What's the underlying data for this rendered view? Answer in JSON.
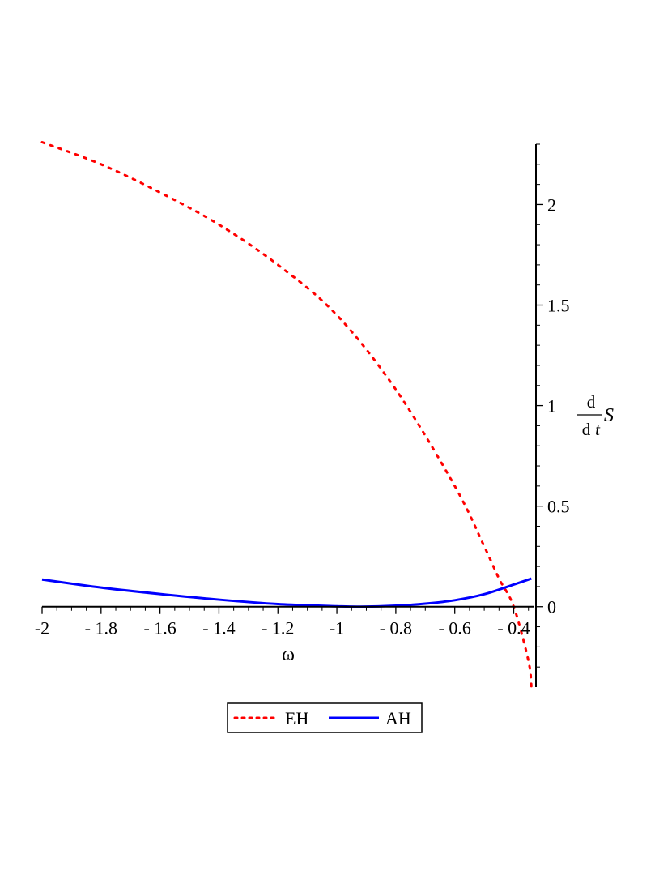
{
  "chart_data": {
    "type": "line",
    "title": "",
    "xlabel": "ω",
    "ylabel": {
      "numerator": "d",
      "denominator_d": "d",
      "denominator_var": "t",
      "function": "S"
    },
    "xlim": [
      -2.0,
      -0.33
    ],
    "ylim": [
      -0.4,
      2.3
    ],
    "x_ticks": [
      -2,
      -1.8,
      -1.6,
      -1.4,
      -1.2,
      -1,
      -0.8,
      -0.6,
      -0.4
    ],
    "x_tick_labels": [
      "-2",
      "- 1.8",
      "- 1.6",
      "- 1.4",
      "- 1.2",
      "-1",
      "- 0.8",
      "- 0.6",
      "- 0.4"
    ],
    "y_ticks": [
      0,
      0.5,
      1,
      1.5,
      2
    ],
    "y_tick_labels": [
      "0",
      "0.5",
      "1",
      "1.5",
      "2"
    ],
    "legend_position": "bottom",
    "series": [
      {
        "name": "EH",
        "color": "#ff0000",
        "style": "dotted",
        "x": [
          -2.0,
          -1.8,
          -1.6,
          -1.4,
          -1.2,
          -1.0,
          -0.8,
          -0.6,
          -0.5,
          -0.45,
          -0.4,
          -0.35,
          -0.34
        ],
        "y": [
          2.31,
          2.2,
          2.06,
          1.9,
          1.7,
          1.45,
          1.08,
          0.6,
          0.3,
          0.14,
          0.0,
          -0.27,
          -0.4
        ]
      },
      {
        "name": "AH",
        "color": "#0000ff",
        "style": "solid",
        "x": [
          -2.0,
          -1.8,
          -1.6,
          -1.4,
          -1.2,
          -1.0,
          -0.92,
          -0.8,
          -0.7,
          -0.6,
          -0.5,
          -0.4,
          -0.34
        ],
        "y": [
          0.135,
          0.095,
          0.063,
          0.035,
          0.013,
          0.002,
          0.0,
          0.005,
          0.015,
          0.032,
          0.062,
          0.11,
          0.14
        ]
      }
    ]
  }
}
